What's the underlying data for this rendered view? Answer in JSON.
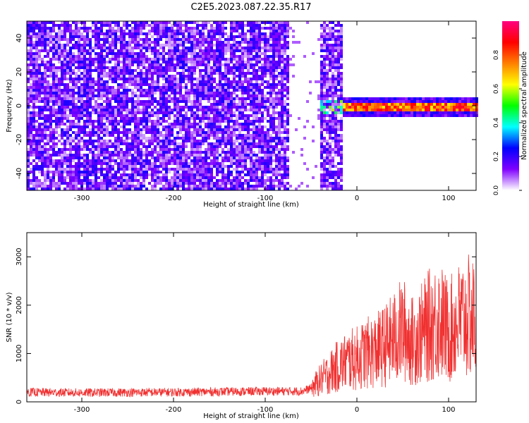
{
  "title": "C2E5.2023.087.22.35.R17",
  "chart_data": [
    {
      "type": "heatmap",
      "xlabel": "Height of straight line (km)",
      "ylabel": "Frequency (Hz)",
      "xlim": [
        -360,
        130
      ],
      "ylim": [
        -50,
        50
      ],
      "x_ticks": [
        -300,
        -200,
        -100,
        0,
        100
      ],
      "y_ticks": [
        -40,
        -20,
        0,
        20,
        40
      ],
      "colorbar": {
        "label": "Normalized spectral amplitude",
        "range": [
          0,
          1
        ],
        "ticks": [
          "0.0",
          "0.2",
          "0.4",
          "0.6",
          "0.8"
        ],
        "colors": [
          "#ffffff",
          "#8000ff",
          "#0000ff",
          "#00ffff",
          "#00ff00",
          "#ffff00",
          "#ff8000",
          "#ff0000",
          "#ff0080"
        ]
      },
      "regions": [
        {
          "name": "noise",
          "x_range": [
            -360,
            -75
          ],
          "y_range": [
            -50,
            50
          ],
          "level": 0.12
        },
        {
          "name": "sparse",
          "x_range": [
            -75,
            -40
          ],
          "y_range": [
            -50,
            50
          ],
          "level": 0.02
        },
        {
          "name": "burst",
          "x_range": [
            -40,
            -17
          ],
          "y_range": [
            -50,
            50
          ],
          "level": 0.12
        },
        {
          "name": "tone",
          "x_range": [
            -17,
            130
          ],
          "y_range": [
            -3,
            3
          ],
          "level": 0.85
        }
      ]
    },
    {
      "type": "line",
      "xlabel": "Height of straight line (km)",
      "ylabel": "SNR (10 * v/v)",
      "xlim": [
        -360,
        130
      ],
      "ylim": [
        0,
        3500
      ],
      "x_ticks": [
        -300,
        -200,
        -100,
        0,
        100
      ],
      "y_ticks": [
        0,
        1000,
        2000,
        3000
      ],
      "color": "#f03030",
      "series": [
        {
          "x": [
            -360,
            -300,
            -200,
            -100,
            -60,
            -50,
            -40,
            -30,
            -20,
            -10,
            0,
            10,
            20,
            30,
            40,
            50,
            60,
            70,
            80,
            90,
            100,
            110,
            120,
            130
          ],
          "y": [
            200,
            190,
            200,
            220,
            220,
            280,
            450,
            600,
            750,
            850,
            900,
            1000,
            1050,
            1150,
            1300,
            1500,
            1250,
            1400,
            1600,
            1700,
            1450,
            1650,
            1750,
            1700
          ]
        }
      ]
    }
  ]
}
